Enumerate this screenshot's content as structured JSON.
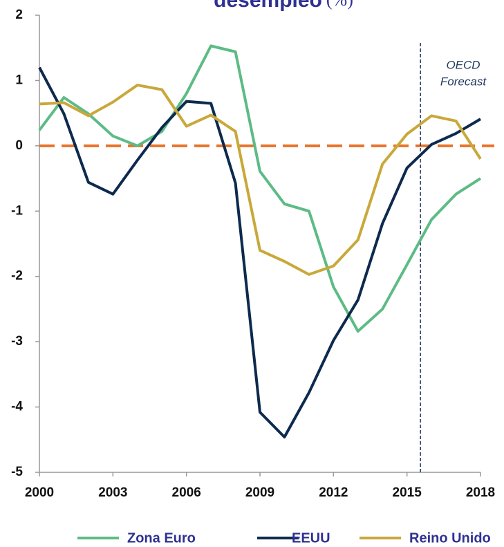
{
  "chart_data": {
    "type": "line",
    "title": "desempleo",
    "title_unit": "(%)",
    "x": [
      2000,
      2001,
      2002,
      2003,
      2004,
      2005,
      2006,
      2007,
      2008,
      2009,
      2010,
      2011,
      2012,
      2013,
      2014,
      2015,
      2016,
      2017,
      2018
    ],
    "series": [
      {
        "name": "Zona Euro",
        "color": "#5dbb85",
        "values": [
          0.24,
          0.74,
          0.49,
          0.15,
          0.0,
          0.22,
          0.8,
          1.53,
          1.44,
          -0.39,
          -0.89,
          -1.0,
          -2.16,
          -2.84,
          -2.5,
          -1.82,
          -1.13,
          -0.74,
          -0.5
        ]
      },
      {
        "name": "EEUU",
        "color": "#0d2a4e",
        "values": [
          1.2,
          0.49,
          -0.56,
          -0.74,
          -0.22,
          0.28,
          0.68,
          0.65,
          -0.57,
          -4.08,
          -4.46,
          -3.78,
          -2.98,
          -2.36,
          -1.19,
          -0.34,
          0.02,
          0.19,
          0.41
        ]
      },
      {
        "name": "Reino Unido",
        "color": "#c9a83a",
        "values": [
          0.64,
          0.66,
          0.46,
          0.67,
          0.93,
          0.86,
          0.3,
          0.47,
          0.22,
          -1.6,
          -1.77,
          -1.97,
          -1.84,
          -1.44,
          -0.28,
          0.18,
          0.46,
          0.38,
          -0.2
        ]
      }
    ],
    "xlim": [
      2000,
      2018
    ],
    "xticks": [
      2000,
      2003,
      2006,
      2009,
      2012,
      2015,
      2018
    ],
    "ylim": [
      -5,
      2
    ],
    "yticks": [
      -5,
      -4,
      -3,
      -2,
      -1,
      0,
      1,
      2
    ],
    "reference_line": {
      "value": 0,
      "color": "#e8732a"
    },
    "forecast_line": 2015.55,
    "annotation": [
      "OECD",
      "Forecast"
    ],
    "legend": "bottom"
  }
}
